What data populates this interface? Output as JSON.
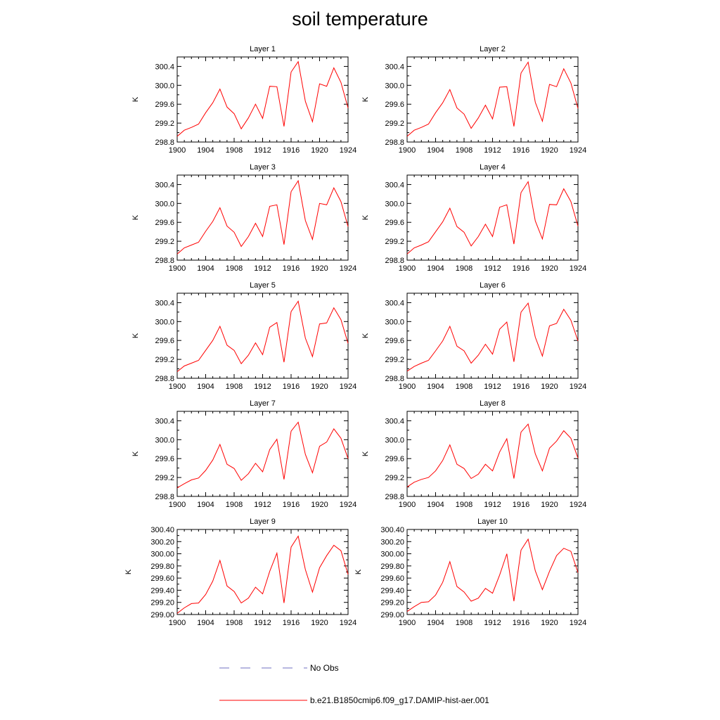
{
  "title": "soil temperature",
  "legend": [
    {
      "label": "No Obs",
      "color": "#7070c0",
      "style": "dashed"
    },
    {
      "label": "b.e21.B1850cmip6.f09_g17.DAMIP-hist-aer.001",
      "color": "#ff0000",
      "style": "solid"
    }
  ],
  "chart_data": [
    {
      "type": "line",
      "title": "Layer 1",
      "ylabel": "K",
      "xlim": [
        1900,
        1924
      ],
      "ylim": [
        298.8,
        300.6
      ],
      "xticks": [
        "1900",
        "1904",
        "1908",
        "1912",
        "1916",
        "1920",
        "1924"
      ],
      "yticks": [
        "298.8",
        "299.2",
        "299.6",
        "300.0",
        "300.4"
      ],
      "series": [
        {
          "name": "b.e21.B1850cmip6.f09_g17.DAMIP-hist-aer.001",
          "color": "#ff0000",
          "x": [
            1900,
            1901,
            1902,
            1903,
            1904,
            1905,
            1906,
            1907,
            1908,
            1909,
            1910,
            1911,
            1912,
            1913,
            1914,
            1915,
            1916,
            1917,
            1918,
            1919,
            1920,
            1921,
            1922,
            1923,
            1924
          ],
          "y": [
            298.92,
            299.05,
            299.11,
            299.18,
            299.42,
            299.63,
            299.92,
            299.54,
            299.4,
            299.08,
            299.31,
            299.6,
            299.3,
            299.98,
            299.97,
            299.13,
            300.28,
            300.5,
            299.66,
            299.23,
            300.03,
            299.98,
            300.37,
            300.06,
            299.52
          ]
        }
      ]
    },
    {
      "type": "line",
      "title": "Layer 2",
      "ylabel": "K",
      "xlim": [
        1900,
        1924
      ],
      "ylim": [
        298.8,
        300.6
      ],
      "xticks": [
        "1900",
        "1904",
        "1908",
        "1912",
        "1916",
        "1920",
        "1924"
      ],
      "yticks": [
        "298.8",
        "299.2",
        "299.6",
        "300.0",
        "300.4"
      ],
      "series": [
        {
          "name": "b.e21.B1850cmip6.f09_g17.DAMIP-hist-aer.001",
          "color": "#ff0000",
          "x": [
            1900,
            1901,
            1902,
            1903,
            1904,
            1905,
            1906,
            1907,
            1908,
            1909,
            1910,
            1911,
            1912,
            1913,
            1914,
            1915,
            1916,
            1917,
            1918,
            1919,
            1920,
            1921,
            1922,
            1923,
            1924
          ],
          "y": [
            298.92,
            299.05,
            299.11,
            299.18,
            299.42,
            299.63,
            299.91,
            299.52,
            299.39,
            299.09,
            299.31,
            299.58,
            299.29,
            299.96,
            299.97,
            299.13,
            300.26,
            300.49,
            299.64,
            299.24,
            300.02,
            299.97,
            300.35,
            300.05,
            299.51
          ]
        }
      ]
    },
    {
      "type": "line",
      "title": "Layer 3",
      "ylabel": "K",
      "xlim": [
        1900,
        1924
      ],
      "ylim": [
        298.8,
        300.6
      ],
      "xticks": [
        "1900",
        "1904",
        "1908",
        "1912",
        "1916",
        "1920",
        "1924"
      ],
      "yticks": [
        "298.8",
        "299.2",
        "299.6",
        "300.0",
        "300.4"
      ],
      "series": [
        {
          "name": "b.e21.B1850cmip6.f09_g17.DAMIP-hist-aer.001",
          "color": "#ff0000",
          "x": [
            1900,
            1901,
            1902,
            1903,
            1904,
            1905,
            1906,
            1907,
            1908,
            1909,
            1910,
            1911,
            1912,
            1913,
            1914,
            1915,
            1916,
            1917,
            1918,
            1919,
            1920,
            1921,
            1922,
            1923,
            1924
          ],
          "y": [
            298.93,
            299.06,
            299.12,
            299.18,
            299.41,
            299.62,
            299.91,
            299.52,
            299.39,
            299.09,
            299.3,
            299.58,
            299.3,
            299.94,
            299.97,
            299.13,
            300.25,
            300.48,
            299.64,
            299.24,
            300.0,
            299.97,
            300.33,
            300.04,
            299.51
          ]
        }
      ]
    },
    {
      "type": "line",
      "title": "Layer 4",
      "ylabel": "K",
      "xlim": [
        1900,
        1924
      ],
      "ylim": [
        298.8,
        300.6
      ],
      "xticks": [
        "1900",
        "1904",
        "1908",
        "1912",
        "1916",
        "1920",
        "1924"
      ],
      "yticks": [
        "298.8",
        "299.2",
        "299.6",
        "300.0",
        "300.4"
      ],
      "series": [
        {
          "name": "b.e21.B1850cmip6.f09_g17.DAMIP-hist-aer.001",
          "color": "#ff0000",
          "x": [
            1900,
            1901,
            1902,
            1903,
            1904,
            1905,
            1906,
            1907,
            1908,
            1909,
            1910,
            1911,
            1912,
            1913,
            1914,
            1915,
            1916,
            1917,
            1918,
            1919,
            1920,
            1921,
            1922,
            1923,
            1924
          ],
          "y": [
            298.93,
            299.06,
            299.12,
            299.19,
            299.4,
            299.61,
            299.9,
            299.51,
            299.39,
            299.1,
            299.3,
            299.56,
            299.3,
            299.92,
            299.97,
            299.14,
            300.23,
            300.46,
            299.63,
            299.25,
            299.98,
            299.97,
            300.31,
            300.04,
            299.52
          ]
        }
      ]
    },
    {
      "type": "line",
      "title": "Layer 5",
      "ylabel": "K",
      "xlim": [
        1900,
        1924
      ],
      "ylim": [
        298.8,
        300.6
      ],
      "xticks": [
        "1900",
        "1904",
        "1908",
        "1912",
        "1916",
        "1920",
        "1924"
      ],
      "yticks": [
        "298.8",
        "299.2",
        "299.6",
        "300.0",
        "300.4"
      ],
      "series": [
        {
          "name": "b.e21.B1850cmip6.f09_g17.DAMIP-hist-aer.001",
          "color": "#ff0000",
          "x": [
            1900,
            1901,
            1902,
            1903,
            1904,
            1905,
            1906,
            1907,
            1908,
            1909,
            1910,
            1911,
            1912,
            1913,
            1914,
            1915,
            1916,
            1917,
            1918,
            1919,
            1920,
            1921,
            1922,
            1923,
            1924
          ],
          "y": [
            298.94,
            299.06,
            299.12,
            299.18,
            299.39,
            299.6,
            299.9,
            299.5,
            299.39,
            299.11,
            299.29,
            299.55,
            299.3,
            299.88,
            299.98,
            299.14,
            300.21,
            300.43,
            299.65,
            299.26,
            299.95,
            299.97,
            300.29,
            300.04,
            299.54
          ]
        }
      ]
    },
    {
      "type": "line",
      "title": "Layer 6",
      "ylabel": "K",
      "xlim": [
        1900,
        1924
      ],
      "ylim": [
        298.8,
        300.6
      ],
      "xticks": [
        "1900",
        "1904",
        "1908",
        "1912",
        "1916",
        "1920",
        "1924"
      ],
      "yticks": [
        "298.8",
        "299.2",
        "299.6",
        "300.0",
        "300.4"
      ],
      "series": [
        {
          "name": "b.e21.B1850cmip6.f09_g17.DAMIP-hist-aer.001",
          "color": "#ff0000",
          "x": [
            1900,
            1901,
            1902,
            1903,
            1904,
            1905,
            1906,
            1907,
            1908,
            1909,
            1910,
            1911,
            1912,
            1913,
            1914,
            1915,
            1916,
            1917,
            1918,
            1919,
            1920,
            1921,
            1922,
            1923,
            1924
          ],
          "y": [
            298.95,
            299.05,
            299.12,
            299.18,
            299.38,
            299.59,
            299.9,
            299.48,
            299.38,
            299.12,
            299.29,
            299.52,
            299.31,
            299.84,
            299.99,
            299.15,
            300.2,
            300.39,
            299.67,
            299.27,
            299.91,
            299.96,
            300.26,
            300.03,
            299.59
          ]
        }
      ]
    },
    {
      "type": "line",
      "title": "Layer 7",
      "ylabel": "K",
      "xlim": [
        1900,
        1924
      ],
      "ylim": [
        298.8,
        300.6
      ],
      "xticks": [
        "1900",
        "1904",
        "1908",
        "1912",
        "1916",
        "1920",
        "1924"
      ],
      "yticks": [
        "298.8",
        "299.2",
        "299.6",
        "300.0",
        "300.4"
      ],
      "series": [
        {
          "name": "b.e21.B1850cmip6.f09_g17.DAMIP-hist-aer.001",
          "color": "#ff0000",
          "x": [
            1900,
            1901,
            1902,
            1903,
            1904,
            1905,
            1906,
            1907,
            1908,
            1909,
            1910,
            1911,
            1912,
            1913,
            1914,
            1915,
            1916,
            1917,
            1918,
            1919,
            1920,
            1921,
            1922,
            1923,
            1924
          ],
          "y": [
            298.98,
            299.07,
            299.15,
            299.19,
            299.35,
            299.57,
            299.9,
            299.48,
            299.39,
            299.14,
            299.28,
            299.5,
            299.32,
            299.79,
            300.01,
            299.16,
            300.18,
            300.37,
            299.69,
            299.3,
            299.86,
            299.95,
            300.23,
            300.03,
            299.6
          ]
        }
      ]
    },
    {
      "type": "line",
      "title": "Layer 8",
      "ylabel": "K",
      "xlim": [
        1900,
        1924
      ],
      "ylim": [
        298.8,
        300.6
      ],
      "xticks": [
        "1900",
        "1904",
        "1908",
        "1912",
        "1916",
        "1920",
        "1924"
      ],
      "yticks": [
        "298.8",
        "299.2",
        "299.6",
        "300.0",
        "300.4"
      ],
      "series": [
        {
          "name": "b.e21.B1850cmip6.f09_g17.DAMIP-hist-aer.001",
          "color": "#ff0000",
          "x": [
            1900,
            1901,
            1902,
            1903,
            1904,
            1905,
            1906,
            1907,
            1908,
            1909,
            1910,
            1911,
            1912,
            1913,
            1914,
            1915,
            1916,
            1917,
            1918,
            1919,
            1920,
            1921,
            1922,
            1923,
            1924
          ],
          "y": [
            299.0,
            299.1,
            299.16,
            299.2,
            299.34,
            299.56,
            299.89,
            299.48,
            299.39,
            299.18,
            299.27,
            299.48,
            299.34,
            299.74,
            300.02,
            299.18,
            300.16,
            300.33,
            299.7,
            299.34,
            299.82,
            299.97,
            300.19,
            300.03,
            299.61
          ]
        }
      ]
    },
    {
      "type": "line",
      "title": "Layer 9",
      "ylabel": "K",
      "xlim": [
        1900,
        1924
      ],
      "ylim": [
        299.0,
        300.4
      ],
      "xticks": [
        "1900",
        "1904",
        "1908",
        "1912",
        "1916",
        "1920",
        "1924"
      ],
      "yticks": [
        "299.00",
        "299.20",
        "299.40",
        "299.60",
        "299.80",
        "300.00",
        "300.20",
        "300.40"
      ],
      "series": [
        {
          "name": "b.e21.B1850cmip6.f09_g17.DAMIP-hist-aer.001",
          "color": "#ff0000",
          "x": [
            1900,
            1901,
            1902,
            1903,
            1904,
            1905,
            1906,
            1907,
            1908,
            1909,
            1910,
            1911,
            1912,
            1913,
            1914,
            1915,
            1916,
            1917,
            1918,
            1919,
            1920,
            1921,
            1922,
            1923,
            1924
          ],
          "y": [
            299.02,
            299.11,
            299.18,
            299.19,
            299.33,
            299.55,
            299.89,
            299.47,
            299.38,
            299.19,
            299.27,
            299.45,
            299.34,
            299.71,
            300.01,
            299.19,
            300.11,
            300.29,
            299.74,
            299.37,
            299.77,
            299.97,
            300.14,
            300.05,
            299.66
          ]
        }
      ]
    },
    {
      "type": "line",
      "title": "Layer 10",
      "ylabel": "K",
      "xlim": [
        1900,
        1924
      ],
      "ylim": [
        299.0,
        300.4
      ],
      "xticks": [
        "1900",
        "1904",
        "1908",
        "1912",
        "1916",
        "1920",
        "1924"
      ],
      "yticks": [
        "299.00",
        "299.20",
        "299.40",
        "299.60",
        "299.80",
        "300.00",
        "300.20",
        "300.40"
      ],
      "series": [
        {
          "name": "b.e21.B1850cmip6.f09_g17.DAMIP-hist-aer.001",
          "color": "#ff0000",
          "x": [
            1900,
            1901,
            1902,
            1903,
            1904,
            1905,
            1906,
            1907,
            1908,
            1909,
            1910,
            1911,
            1912,
            1913,
            1914,
            1915,
            1916,
            1917,
            1918,
            1919,
            1920,
            1921,
            1922,
            1923,
            1924
          ],
          "y": [
            299.05,
            299.13,
            299.2,
            299.21,
            299.32,
            299.53,
            299.87,
            299.46,
            299.37,
            299.22,
            299.27,
            299.43,
            299.35,
            299.65,
            300.0,
            299.22,
            300.06,
            300.24,
            299.72,
            299.41,
            299.71,
            299.97,
            300.09,
            300.04,
            299.69
          ]
        }
      ]
    }
  ]
}
